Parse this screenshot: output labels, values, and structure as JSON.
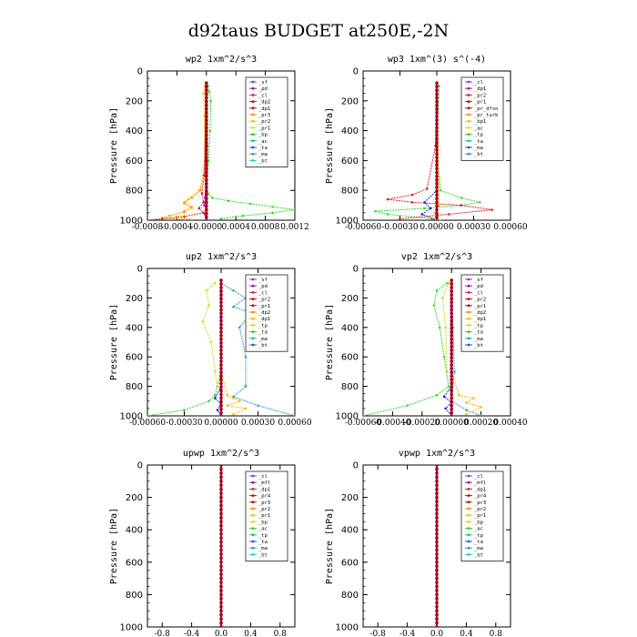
{
  "figure_title": "d92taus  BUDGET at250E,-2N",
  "chart_data": [
    {
      "type": "line",
      "title": "wp2  1xm^2/s^3",
      "ylabel": "Pressure [hPa]",
      "yticks": [
        0,
        200,
        400,
        600,
        800,
        1000
      ],
      "ylim": [
        0,
        1000
      ],
      "xlim": [
        -0.0008,
        0.0012
      ],
      "xticks": [
        -0.0008,
        -0.0004,
        0.0,
        0.0004,
        0.0008,
        0.0012
      ],
      "xtick_labels": [
        "-0.0008",
        "-0.0004",
        "-0.0000",
        "0.0004",
        "0.0008",
        "0.0012"
      ],
      "legend": [
        "_sf",
        "_pd",
        "_cl",
        "_dp2",
        "_dp1",
        "_pr3",
        "_pr2",
        "_pr1",
        "_bp",
        "_ac",
        "_ta",
        "_ma",
        "_bt"
      ],
      "legend_placement": "top-right",
      "series": [
        {
          "name": "_pr1",
          "color": "#33dd33",
          "x": [
            2e-05,
            4e-05,
            6e-05,
            5e-05,
            3e-05,
            0.0,
            2e-05,
            8e-05,
            0.0003,
            0.0006,
            0.0009,
            0.0012,
            0.0009,
            0.0005,
            0.0002
          ],
          "y": [
            100,
            140,
            200,
            400,
            600,
            780,
            820,
            850,
            870,
            890,
            910,
            930,
            950,
            970,
            990
          ]
        },
        {
          "name": "_pr2",
          "color": "#ffcc00",
          "x": [
            -2e-05,
            -4e-05,
            -3e-05,
            -2e-05,
            -0.0001,
            -0.00025,
            -0.0003,
            -0.0002,
            -0.0003,
            -0.0004,
            -0.0002
          ],
          "y": [
            100,
            150,
            300,
            700,
            800,
            860,
            890,
            920,
            950,
            975,
            995
          ]
        },
        {
          "name": "_pr3",
          "color": "#ff9900",
          "x": [
            -1e-05,
            -2e-05,
            -8e-05,
            -0.0002,
            -0.0003,
            -0.0002,
            -0.0003,
            -0.0005,
            -0.0006,
            -0.0003
          ],
          "y": [
            200,
            600,
            800,
            850,
            880,
            910,
            940,
            970,
            985,
            995
          ]
        },
        {
          "name": "_dp1",
          "color": "#dd2222",
          "x": [
            0.0,
            -3e-05,
            -6e-05,
            -4e-05,
            -0.0001,
            -4e-05,
            -0.0003,
            -0.0006,
            -0.0008
          ],
          "y": [
            150,
            700,
            820,
            880,
            920,
            950,
            975,
            990,
            1000
          ]
        },
        {
          "name": "_bp",
          "color": "#9933ff",
          "x": [
            1e-05,
            1e-05,
            -2e-05,
            -3e-05,
            0.0,
            -2e-05,
            0.0
          ],
          "y": [
            100,
            500,
            850,
            900,
            930,
            960,
            1000
          ]
        },
        {
          "name": "_sf",
          "color": "#8800aa",
          "x": [
            0.0,
            0.0
          ],
          "y": [
            80,
            1000
          ]
        },
        {
          "name": "_cl",
          "color": "#aa0022",
          "x": [
            0.0,
            0.0
          ],
          "y": [
            80,
            1000
          ]
        }
      ]
    },
    {
      "type": "line",
      "title": "wp3  1xm^(3) s^(-4)",
      "ylabel": "Pressure [hPa]",
      "yticks": [
        0,
        200,
        400,
        600,
        800,
        1000
      ],
      "ylim": [
        0,
        1000
      ],
      "xlim": [
        -0.0006,
        0.0006
      ],
      "xticks": [
        -0.0006,
        -0.0003,
        0.0,
        0.0003,
        0.0006
      ],
      "xtick_labels": [
        "-0.00060",
        "-0.00030",
        "0.00000",
        "0.00030",
        "0.00060"
      ],
      "legend": [
        "_cl",
        "_dp1",
        "_pr2",
        "_pr1",
        "_pr_dfsn",
        "_pr_turb",
        "_bp1",
        "_ac",
        "_tp",
        "_ta",
        "_ma",
        "_bt"
      ],
      "legend_placement": "top-right",
      "series": [
        {
          "name": "_pr1",
          "color": "#33dd33",
          "x": [
            2e-05,
            0.0,
            3e-05,
            0.0002,
            0.00035,
            0.0002,
            -0.0001,
            -0.0005,
            -0.0004,
            -4e-05
          ],
          "y": [
            100,
            500,
            800,
            850,
            880,
            900,
            920,
            940,
            960,
            990
          ]
        },
        {
          "name": "_dp1",
          "color": "#dd2222",
          "x": [
            0.0,
            -1e-05,
            -8e-05,
            -0.0002,
            -0.0004,
            -0.0002,
            0.0002,
            0.00045,
            0.0001,
            -0.0003
          ],
          "y": [
            100,
            500,
            790,
            830,
            860,
            880,
            900,
            930,
            960,
            990
          ]
        },
        {
          "name": "_tp",
          "color": "#2222cc",
          "x": [
            0.0,
            0.0,
            -0.0001,
            -5e-05,
            -0.00012,
            0.0
          ],
          "y": [
            100,
            800,
            880,
            920,
            960,
            1000
          ]
        },
        {
          "name": "_pr2",
          "color": "#ffcc00",
          "x": [
            0.0,
            2e-05,
            -2e-05,
            3e-05
          ],
          "y": [
            100,
            900,
            950,
            1000
          ]
        },
        {
          "name": "_cl",
          "color": "#aa0022",
          "x": [
            0.0,
            0.0
          ],
          "y": [
            80,
            1000
          ]
        }
      ]
    },
    {
      "type": "line",
      "title": "up2  1xm^2/s^3",
      "ylabel": "Pressure [hPa]",
      "yticks": [
        0,
        200,
        400,
        600,
        800,
        1000
      ],
      "ylim": [
        0,
        1000
      ],
      "xlim": [
        -0.0006,
        0.0006
      ],
      "xticks": [
        -0.0006,
        -0.0003,
        0.0,
        0.0003,
        0.0006
      ],
      "xtick_labels": [
        "-0.00060",
        "-0.00030",
        "0.00000",
        "0.00030",
        "0.00060"
      ],
      "legend": [
        "_sf",
        "_pd",
        "_cl",
        "_pr2",
        "_pr1",
        "_dp2",
        "_dp1",
        "_tp",
        "_ta",
        "_ma",
        "_bt"
      ],
      "legend_placement": "top-right",
      "series": [
        {
          "name": "_tp",
          "color": "#3399cc",
          "x": [
            0.0,
            0.0001,
            0.0002,
            0.0001,
            0.00025,
            0.00015,
            0.0002,
            0.0002,
            0.0001,
            0.0003,
            0.0006
          ],
          "y": [
            100,
            150,
            200,
            260,
            300,
            400,
            600,
            800,
            870,
            930,
            1000
          ]
        },
        {
          "name": "_pr2",
          "color": "#ccdd22",
          "x": [
            -5e-05,
            -0.00012,
            -0.0001,
            -0.00015,
            -8e-05,
            -5e-05,
            -3e-05
          ],
          "y": [
            100,
            150,
            250,
            360,
            500,
            700,
            800
          ]
        },
        {
          "name": "_pr1",
          "color": "#33dd33",
          "x": [
            0.0,
            -5e-05,
            -0.0001,
            -0.0003,
            -0.0006
          ],
          "y": [
            700,
            860,
            900,
            960,
            1000
          ]
        },
        {
          "name": "_dp1",
          "color": "#ffbb00",
          "x": [
            0.0,
            5e-05,
            0.0001,
            0.00015,
            5e-05,
            0.0002,
            0.0001
          ],
          "y": [
            700,
            860,
            880,
            900,
            930,
            950,
            990
          ]
        },
        {
          "name": "_ta",
          "color": "#2222cc",
          "x": [
            0.0,
            -5e-05,
            0.0,
            -3e-05,
            0.0
          ],
          "y": [
            800,
            880,
            920,
            960,
            1000
          ]
        },
        {
          "name": "_cl",
          "color": "#aa0022",
          "x": [
            0.0,
            0.0
          ],
          "y": [
            80,
            1000
          ]
        }
      ]
    },
    {
      "type": "line",
      "title": "vp2  1xm^2/s^3",
      "ylabel": "Pressure [hPa]",
      "yticks": [
        0,
        200,
        400,
        600,
        800,
        1000
      ],
      "ylim": [
        0,
        1000
      ],
      "xlim": [
        -0.0006,
        0.0004
      ],
      "xticks": [
        -0.0006,
        -0.0004,
        -0.0002,
        0.0,
        0.0002,
        0.0004
      ],
      "xtick_labels": [
        "-0.00060",
        "-0.00040",
        "-0.00020",
        "0.00000",
        "0.00020",
        "0.00040"
      ],
      "legend": [
        "_sf",
        "_pd",
        "_cl",
        "_pr2",
        "_pr1",
        "_dp2",
        "_dp1",
        "_tp",
        "_ta",
        "_ma",
        "_bt"
      ],
      "legend_placement": "top-right",
      "series": [
        {
          "name": "_pr1",
          "color": "#33dd33",
          "x": [
            -3e-05,
            -0.0001,
            -0.00012,
            -8e-05,
            -5e-05,
            -2e-05,
            -0.0001,
            -0.0003,
            -0.0006
          ],
          "y": [
            100,
            150,
            250,
            400,
            600,
            800,
            860,
            930,
            1000
          ]
        },
        {
          "name": "_pr2",
          "color": "#ccdd22",
          "x": [
            -2e-05,
            -6e-05,
            -4e-05,
            -3e-05
          ],
          "y": [
            100,
            200,
            400,
            700
          ]
        },
        {
          "name": "_tp",
          "color": "#3399cc",
          "x": [
            0.0,
            1e-05,
            2e-05,
            0.0,
            0.0001,
            0.0002
          ],
          "y": [
            100,
            400,
            700,
            900,
            960,
            1000
          ]
        },
        {
          "name": "_dp1",
          "color": "#ffbb00",
          "x": [
            0.0,
            5e-05,
            0.00015,
            0.0001,
            0.0002,
            0.0001
          ],
          "y": [
            700,
            860,
            880,
            910,
            940,
            990
          ]
        },
        {
          "name": "_ta",
          "color": "#2222cc",
          "x": [
            0.0,
            -5e-05,
            0.0,
            -4e-05,
            0.0
          ],
          "y": [
            800,
            870,
            910,
            950,
            1000
          ]
        },
        {
          "name": "_cl",
          "color": "#aa0022",
          "x": [
            0.0,
            0.0
          ],
          "y": [
            80,
            1000
          ]
        }
      ]
    },
    {
      "type": "line",
      "title": "upwp  1xm^2/s^3",
      "ylabel": "Pressure [hPa]",
      "yticks": [
        0,
        200,
        400,
        600,
        800,
        1000
      ],
      "ylim": [
        0,
        1000
      ],
      "xlim": [
        -1.0,
        1.0
      ],
      "xticks": [
        -0.8,
        -0.4,
        0.0,
        0.4,
        0.8
      ],
      "xtick_labels": [
        "-0.8",
        "-0.4",
        "0.0",
        "0.4",
        "0.8"
      ],
      "legend": [
        "_cl",
        "_mfl",
        "_dp1",
        "_pr4",
        "_pr3",
        "_pr2",
        "_pr1",
        "_bp",
        "_ac",
        "_tp",
        "_ta",
        "_ma",
        "_bt"
      ],
      "legend_placement": "top-right",
      "series": [
        {
          "name": "_cl",
          "color": "#aa0022",
          "x": [
            0.0,
            0.0
          ],
          "y": [
            0,
            1000
          ]
        }
      ]
    },
    {
      "type": "line",
      "title": "vpwp  1xm^2/s^3",
      "ylabel": "Pressure [hPa]",
      "yticks": [
        0,
        200,
        400,
        600,
        800,
        1000
      ],
      "ylim": [
        0,
        1000
      ],
      "xlim": [
        -1.0,
        1.0
      ],
      "xticks": [
        -0.8,
        -0.4,
        0.0,
        0.4,
        0.8
      ],
      "xtick_labels": [
        "-0.8",
        "-0.4",
        "0.0",
        "0.4",
        "0.8"
      ],
      "legend": [
        "_cl",
        "_mfl",
        "_dp1",
        "_pr4",
        "_pr3",
        "_pr2",
        "_pr1",
        "_bp",
        "_ac",
        "_tp",
        "_ta",
        "_ma",
        "_bt"
      ],
      "legend_placement": "top-right",
      "series": [
        {
          "name": "_cl",
          "color": "#aa0022",
          "x": [
            0.0,
            0.0
          ],
          "y": [
            0,
            1000
          ]
        }
      ]
    }
  ]
}
